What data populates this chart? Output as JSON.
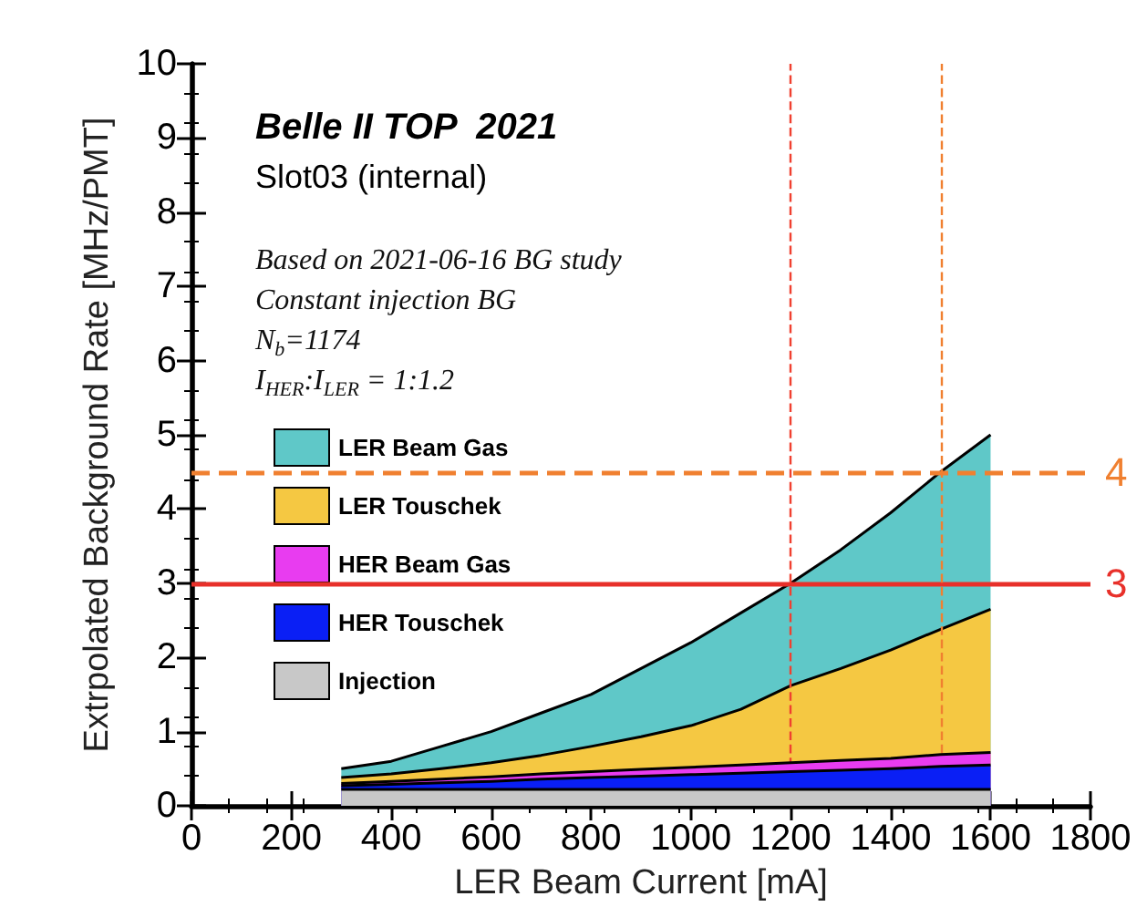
{
  "chart_data": {
    "type": "area",
    "stacked": true,
    "title": "Belle II TOP  2021",
    "subtitle": "Slot03 (internal)",
    "xlabel": "LER Beam Current [mA]",
    "ylabel": "Extrpolated Background Rate [MHz/PMT]",
    "annotations": [
      "Based on 2021-06-16 BG study",
      "Constant injection BG",
      "N$_{b}$=1174",
      "I$_{HER}$:I$_{LER}$ = 1:1.2"
    ],
    "x": [
      300,
      400,
      500,
      600,
      700,
      800,
      900,
      1000,
      1100,
      1200,
      1300,
      1400,
      1500,
      1600
    ],
    "series": [
      {
        "name": "Injection",
        "color": "#c8c8c8",
        "values": [
          0.22,
          0.22,
          0.22,
          0.22,
          0.22,
          0.22,
          0.22,
          0.22,
          0.22,
          0.22,
          0.22,
          0.22,
          0.22,
          0.22
        ]
      },
      {
        "name": "HER Touschek",
        "color": "#0a1ff5",
        "values": [
          0.05,
          0.07,
          0.09,
          0.11,
          0.14,
          0.16,
          0.18,
          0.2,
          0.22,
          0.24,
          0.26,
          0.28,
          0.31,
          0.33
        ]
      },
      {
        "name": "HER Beam Gas",
        "color": "#e83cf0",
        "values": [
          0.03,
          0.04,
          0.05,
          0.06,
          0.07,
          0.08,
          0.09,
          0.1,
          0.11,
          0.12,
          0.13,
          0.14,
          0.16,
          0.17
        ]
      },
      {
        "name": "LER Touschek",
        "color": "#f5c842",
        "values": [
          0.08,
          0.1,
          0.14,
          0.19,
          0.25,
          0.34,
          0.44,
          0.56,
          0.75,
          1.04,
          1.24,
          1.46,
          1.69,
          1.93
        ]
      },
      {
        "name": "LER Beam Gas",
        "color": "#5fc8c8",
        "values": [
          0.12,
          0.17,
          0.3,
          0.42,
          0.57,
          0.7,
          0.92,
          1.12,
          1.3,
          1.38,
          1.6,
          1.85,
          2.12,
          2.35
        ]
      }
    ],
    "xlim": [
      0,
      1800
    ],
    "xticks": [
      0,
      200,
      400,
      600,
      800,
      1000,
      1200,
      1400,
      1600,
      1800
    ],
    "ylim": [
      0,
      10
    ],
    "yticks": [
      0,
      1,
      2,
      3,
      4,
      5,
      6,
      7,
      8,
      9,
      10
    ],
    "ref_lines": [
      {
        "axis": "y",
        "value": 4.5,
        "label": "4",
        "color": "#f08030",
        "line_style": "dashed"
      },
      {
        "axis": "y",
        "value": 3,
        "label": "3",
        "color": "#e8302a",
        "line_style": "solid"
      },
      {
        "axis": "x",
        "value": 1200,
        "label": null,
        "color": "#f04030",
        "line_style": "dashed"
      },
      {
        "axis": "x",
        "value": 1500,
        "label": null,
        "color": "#f08030",
        "line_style": "dashed"
      }
    ],
    "legend": "left",
    "grid": false,
    "marker": "none"
  }
}
